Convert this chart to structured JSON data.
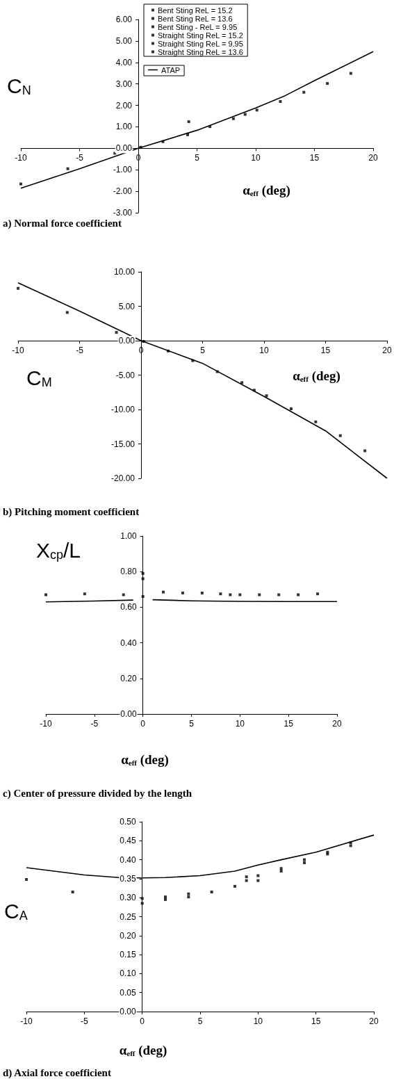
{
  "chart_data": [
    {
      "type": "scatter",
      "ylabel": "C$_{N}$",
      "xlabel": "α$_{eff}$ (deg)",
      "annotations": [
        "a) Normal force coefficient"
      ],
      "xlim": [
        -10,
        20
      ],
      "xticks": [
        -10,
        -5,
        0,
        5,
        10,
        15,
        20
      ],
      "ylim": [
        -3,
        6
      ],
      "yticks": [
        {
          "value": -3,
          "label": "-3.00"
        },
        {
          "value": -2,
          "label": "-2.00"
        },
        {
          "value": -1,
          "label": "-1.00"
        },
        {
          "value": 0,
          "label": "0.00"
        },
        {
          "value": 1,
          "label": "1.00"
        },
        {
          "value": 2,
          "label": "2.00"
        },
        {
          "value": 3,
          "label": "3.00"
        },
        {
          "value": 4,
          "label": "4.00"
        },
        {
          "value": 5,
          "label": "5.00"
        },
        {
          "value": 6,
          "label": "6.00"
        }
      ],
      "grid": false,
      "legend": "top",
      "x": [
        -10,
        -6,
        -2,
        0.2,
        2.1,
        4.2,
        4.3,
        6.1,
        8.1,
        9.1,
        10.1,
        12.1,
        14.1,
        16.1,
        18.1
      ],
      "series": [
        {
          "name": "Bent Sting ReL = 15.2",
          "color": "#000000",
          "marker": "square",
          "values": [
            -1.66,
            -0.95,
            -0.23,
            0.05,
            0.31,
            0.63,
            1.24,
            1.01,
            1.38,
            1.58,
            1.78,
            2.18,
            2.61,
            3.02,
            3.49
          ]
        },
        {
          "name": "Bent Sting ReL = 13.6",
          "color": "#000000",
          "marker": "square",
          "values": [
            null,
            null,
            null,
            null,
            null,
            null,
            null,
            null,
            null,
            null,
            null,
            null,
            null,
            null,
            null
          ]
        },
        {
          "name": "Bent Sting - ReL = 9.95",
          "color": "#000000",
          "marker": "square",
          "values": [
            null,
            null,
            null,
            null,
            null,
            null,
            null,
            null,
            null,
            null,
            null,
            null,
            null,
            null,
            null
          ]
        },
        {
          "name": "Straight Sting ReL = 15.2",
          "color": "#000000",
          "marker": "square",
          "values": [
            null,
            null,
            null,
            null,
            null,
            null,
            null,
            null,
            null,
            null,
            null,
            null,
            null,
            null,
            null
          ]
        },
        {
          "name": "Straight Sting ReL = 9.95",
          "color": "#000000",
          "marker": "square",
          "values": [
            null,
            null,
            null,
            null,
            null,
            null,
            null,
            null,
            null,
            null,
            null,
            null,
            null,
            null,
            null
          ]
        },
        {
          "name": "Straight Sting ReL = 13.6",
          "color": "#000000",
          "marker": "square",
          "values": [
            null,
            null,
            null,
            null,
            null,
            null,
            null,
            null,
            null,
            null,
            null,
            null,
            null,
            null,
            null
          ]
        },
        {
          "name": "ATAP",
          "type": "line",
          "color": "#000000",
          "marker": "none",
          "x": [
            -10,
            -5,
            0,
            5,
            10,
            12.5,
            15,
            20
          ],
          "values": [
            -1.86,
            -0.95,
            0,
            0.84,
            1.88,
            2.45,
            3.15,
            4.5
          ]
        }
      ]
    },
    {
      "type": "scatter",
      "ylabel": "C$_{M}$",
      "xlabel": "α$_{eff}$ (deg)",
      "annotations": [
        "b) Pitching moment coefficient"
      ],
      "xlim": [
        -10,
        20
      ],
      "xticks": [
        -10,
        -5,
        0,
        5,
        10,
        15,
        20
      ],
      "ylim": [
        -20,
        10
      ],
      "yticks": [
        {
          "value": -20,
          "label": "-20.00"
        },
        {
          "value": -15,
          "label": "-15.00"
        },
        {
          "value": -10,
          "label": "-10.00"
        },
        {
          "value": -5,
          "label": "-5.00"
        },
        {
          "value": 0,
          "label": "0.00"
        },
        {
          "value": 5,
          "label": "5.00"
        },
        {
          "value": 10,
          "label": "10.00"
        }
      ],
      "grid": false,
      "series": [
        {
          "color": "#000000",
          "marker": "square",
          "x": [
            -10,
            -6,
            -2,
            0.2,
            2.2,
            4.2,
            6.2,
            8.2,
            9.2,
            10.2,
            12.2,
            14.2,
            16.2,
            18.2
          ],
          "values": [
            7.6,
            4.1,
            1.2,
            -0.1,
            -1.5,
            -2.9,
            -4.5,
            -6.1,
            -7.2,
            -8.0,
            -9.9,
            -11.8,
            -13.8,
            -16.0
          ]
        },
        {
          "type": "line",
          "color": "#000000",
          "marker": "none",
          "x": [
            -10,
            -5,
            0,
            5,
            10,
            15,
            20
          ],
          "values": [
            8.4,
            4.3,
            0,
            -3.3,
            -8.1,
            -13.1,
            -20
          ]
        }
      ]
    },
    {
      "type": "scatter",
      "ylabel": "X$_{cp}$/L",
      "xlabel": "α$_{eff}$ (deg)",
      "annotations": [
        "c) Center of pressure divided by the length"
      ],
      "xlim": [
        -10,
        20
      ],
      "xticks": [
        -10,
        -5,
        0,
        5,
        10,
        15,
        20
      ],
      "ylim": [
        0,
        1
      ],
      "yticks": [
        {
          "value": 0,
          "label": "0.00"
        },
        {
          "value": 0.2,
          "label": "0.20"
        },
        {
          "value": 0.4,
          "label": "0.40"
        },
        {
          "value": 0.6,
          "label": "0.60"
        },
        {
          "value": 0.8,
          "label": "0.80"
        },
        {
          "value": 1,
          "label": "1.00"
        }
      ],
      "grid": false,
      "series": [
        {
          "color": "#000000",
          "marker": "square",
          "x": [
            -10,
            -6,
            -2,
            0,
            0,
            0,
            2.1,
            4.1,
            6.1,
            8,
            9,
            10,
            12,
            14,
            16,
            18
          ],
          "values": [
            0.67,
            0.675,
            0.67,
            0.66,
            0.76,
            0.79,
            0.685,
            0.68,
            0.68,
            0.675,
            0.67,
            0.67,
            0.67,
            0.67,
            0.67,
            0.675
          ]
        },
        {
          "type": "line",
          "color": "#000000",
          "marker": "none",
          "x": [
            -10,
            -5,
            -1,
            0,
            1,
            5,
            10,
            15,
            20
          ],
          "values": [
            0.63,
            0.635,
            0.64,
            null,
            0.642,
            0.636,
            0.633,
            0.632,
            0.632
          ]
        }
      ]
    },
    {
      "type": "scatter",
      "ylabel": "C$_{A}$",
      "xlabel": "α$_{eff}$ (deg)",
      "annotations": [
        "d) Axial force coefficient"
      ],
      "xlim": [
        -10,
        20
      ],
      "xticks": [
        -10,
        -5,
        0,
        5,
        10,
        15,
        20
      ],
      "ylim": [
        0,
        0.5
      ],
      "yticks": [
        {
          "value": 0,
          "label": "0.00"
        },
        {
          "value": 0.05,
          "label": "0.05"
        },
        {
          "value": 0.1,
          "label": "0.10"
        },
        {
          "value": 0.15,
          "label": "0.15"
        },
        {
          "value": 0.2,
          "label": "0.20"
        },
        {
          "value": 0.25,
          "label": "0.25"
        },
        {
          "value": 0.3,
          "label": "0.30"
        },
        {
          "value": 0.35,
          "label": "0.35"
        },
        {
          "value": 0.4,
          "label": "0.40"
        },
        {
          "value": 0.45,
          "label": "0.45"
        },
        {
          "value": 0.5,
          "label": "0.50"
        }
      ],
      "grid": false,
      "series": [
        {
          "color": "#000000",
          "marker": "square",
          "x": [
            -10,
            -6,
            0,
            0,
            2,
            2,
            4,
            4,
            6,
            8,
            9,
            9,
            10,
            10,
            12,
            12,
            14,
            14,
            16,
            16,
            18,
            18
          ],
          "values": [
            0.348,
            0.315,
            0.298,
            0.285,
            0.302,
            0.295,
            0.31,
            0.302,
            0.315,
            0.33,
            0.355,
            0.345,
            0.358,
            0.345,
            0.377,
            0.37,
            0.4,
            0.392,
            0.42,
            0.415,
            0.445,
            0.437
          ]
        },
        {
          "type": "line",
          "color": "#000000",
          "marker": "none",
          "x": [
            -10,
            -5,
            -2,
            0,
            2,
            5,
            8,
            10,
            12,
            15,
            20
          ],
          "values": [
            0.379,
            0.36,
            0.353,
            0.352,
            0.353,
            0.358,
            0.37,
            0.386,
            0.4,
            0.42,
            0.465
          ]
        }
      ]
    }
  ]
}
